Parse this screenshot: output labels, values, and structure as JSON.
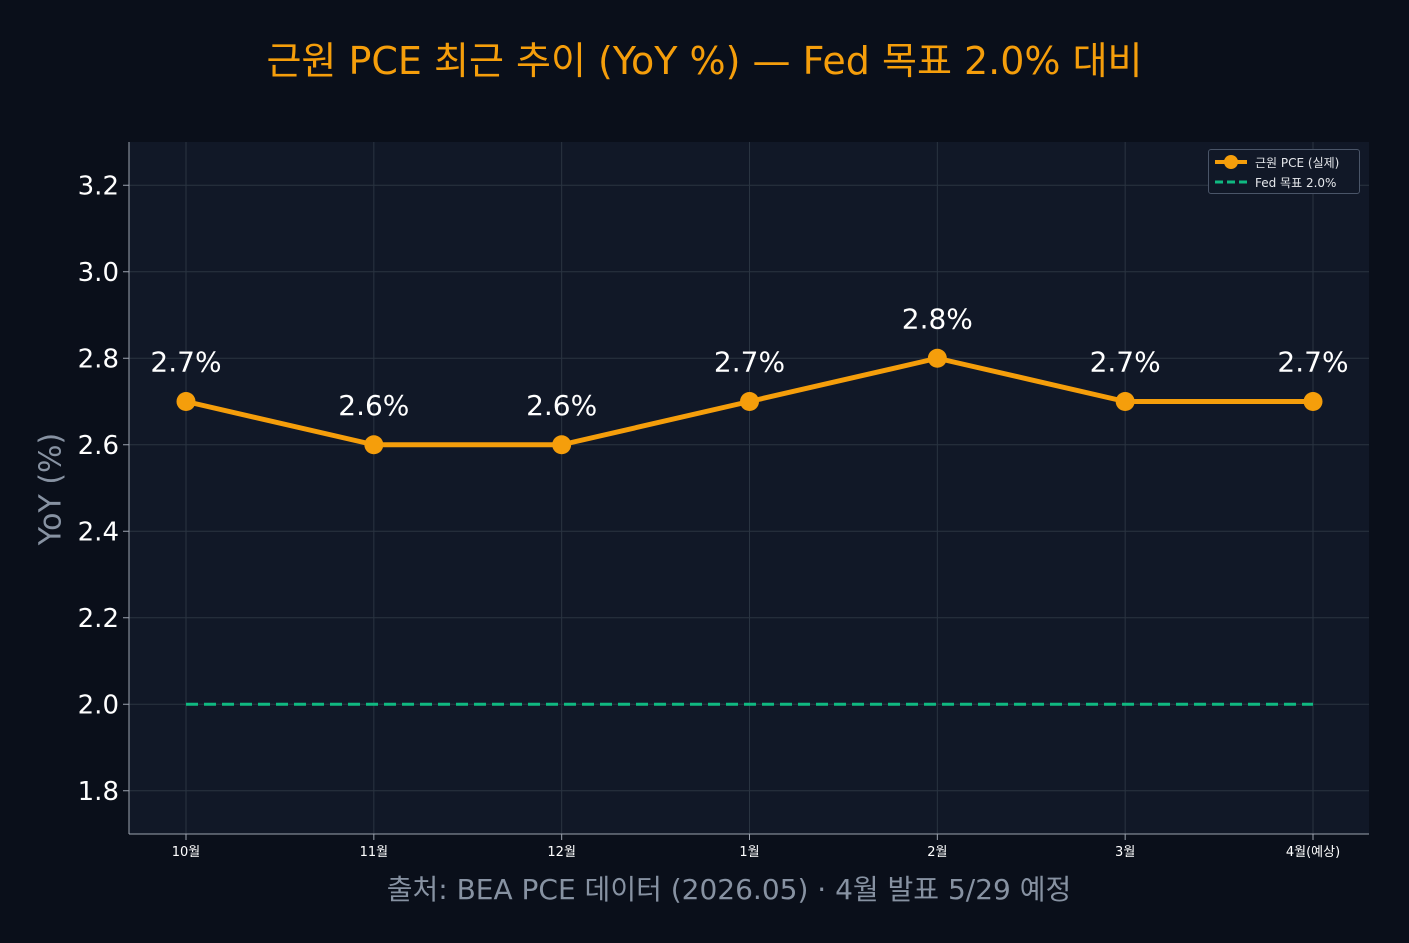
{
  "title": "근원 PCE 최근 추이 (YoY %) — Fed 목표 2.0% 대비",
  "source": "출처: BEA PCE 데이터 (2026.05) · 4월 발표 5/29 예정",
  "colors": {
    "background": "#0a0f1a",
    "plot_background": "#111827",
    "series": "#f59e0b",
    "target": "#10b981",
    "grid": "#2a3441",
    "text": "#ffffff",
    "muted": "#8792a2"
  },
  "chart_data": {
    "type": "line",
    "title": "근원 PCE 최근 추이 (YoY %) — Fed 목표 2.0% 대비",
    "xlabel": "",
    "ylabel": "YoY (%)",
    "categories": [
      "10월",
      "11월",
      "12월",
      "1월",
      "2월",
      "3월",
      "4월(예상)"
    ],
    "ylim": [
      1.7,
      3.3
    ],
    "yticks": [
      "1.8",
      "2.0",
      "2.2",
      "2.4",
      "2.6",
      "2.8",
      "3.0",
      "3.2"
    ],
    "grid": true,
    "legend_position": "top-right",
    "series": [
      {
        "name": "근원 PCE (실제)",
        "values": [
          2.7,
          2.6,
          2.6,
          2.7,
          2.8,
          2.7,
          2.7
        ],
        "data_labels": [
          "2.7%",
          "2.6%",
          "2.6%",
          "2.7%",
          "2.8%",
          "2.7%",
          "2.7%"
        ],
        "color": "#f59e0b",
        "style": "solid-markers"
      },
      {
        "name": "Fed 목표 2.0%",
        "values": [
          2.0,
          2.0,
          2.0,
          2.0,
          2.0,
          2.0,
          2.0
        ],
        "color": "#10b981",
        "style": "dashed"
      }
    ]
  }
}
